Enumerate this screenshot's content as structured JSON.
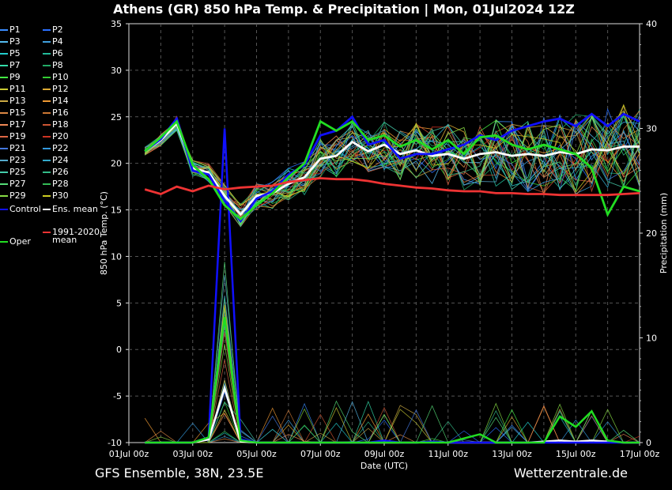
{
  "title": "Athens  (GR)  850 hPa Temp. & Precipitation | Mon, 01Jul2024 12Z",
  "footer_left": "GFS Ensemble, 38N, 23.5E",
  "footer_right": "Wetterzentrale.de",
  "colors": {
    "control": "#1010ff",
    "ens_mean": "#ffffff",
    "clim": "#ee3333",
    "oper": "#22dd22",
    "grid": "#555555"
  },
  "legend": {
    "members": [
      "P1",
      "P2",
      "P3",
      "P4",
      "P5",
      "P6",
      "P7",
      "P8",
      "P9",
      "P10",
      "P11",
      "P12",
      "P13",
      "P14",
      "P15",
      "P16",
      "P17",
      "P18",
      "P19",
      "P20",
      "P21",
      "P22",
      "P23",
      "P24",
      "P25",
      "P26",
      "P27",
      "P28",
      "P29",
      "P30"
    ],
    "member_colors": [
      "#3a8cff",
      "#2a70ff",
      "#55bbee",
      "#40a0dd",
      "#22cccc",
      "#22bb99",
      "#33ddaa",
      "#22aa66",
      "#44ee44",
      "#33cc33",
      "#cccc33",
      "#ddaa33",
      "#ccaa44",
      "#ee9933",
      "#dd8844",
      "#cc7733",
      "#ee8855",
      "#cc5533",
      "#dd6644",
      "#cc3322",
      "#4477dd",
      "#3399dd",
      "#55aacc",
      "#33aacc",
      "#44ccaa",
      "#33bb88",
      "#55dd77",
      "#33bb55",
      "#88dd44",
      "#cccc22"
    ],
    "control": "Control",
    "ens_mean": "Ens. mean",
    "clim": "1991-2020 mean",
    "clim_line1": "1991-2020",
    "clim_line2": "mean",
    "oper": "Oper"
  },
  "chart_data": {
    "type": "line",
    "title": "Athens  (GR)  850 hPa Temp. & Precipitation | Mon, 01Jul2024 12Z",
    "xlabel": "Date (UTC)",
    "ylabel": "850 hPa Temp. (°C)",
    "y2label": "Precipitation (mm)",
    "xlim": [
      "01Jul 00z",
      "17Jul 00z"
    ],
    "ylim": [
      -10,
      35
    ],
    "y2lim": [
      0,
      40
    ],
    "x_ticks": [
      "01Jul 00z",
      "03Jul 00z",
      "05Jul 00z",
      "07Jul 00z",
      "09Jul 00z",
      "11Jul 00z",
      "13Jul 00z",
      "15Jul 00z",
      "17Jul 00z"
    ],
    "y_ticks": [
      -10,
      -5,
      0,
      5,
      10,
      15,
      20,
      25,
      30,
      35
    ],
    "y2_ticks": [
      0,
      10,
      20,
      30,
      40
    ],
    "grid": true,
    "legend_position": "left outside",
    "x_days": [
      0.5,
      1.0,
      1.5,
      2.0,
      2.5,
      3.0,
      3.5,
      4.0,
      4.5,
      5.0,
      5.5,
      6.0,
      6.5,
      7.0,
      7.5,
      8.0,
      8.5,
      9.0,
      9.5,
      10.0,
      10.5,
      11.0,
      11.5,
      12.0,
      12.5,
      13.0,
      13.5,
      14.0,
      14.5,
      15.0,
      15.5,
      16.0
    ],
    "series": [
      {
        "name": "Ens. mean",
        "values": [
          21.3,
          22.5,
          24.3,
          19.5,
          19.0,
          16.5,
          14.5,
          16.5,
          16.8,
          17.8,
          18.5,
          20.5,
          20.8,
          22.3,
          21.3,
          22.0,
          21.0,
          21.4,
          20.8,
          21.0,
          20.5,
          21.0,
          21.2,
          20.8,
          21.0,
          20.8,
          21.2,
          21.0,
          21.5,
          21.4,
          21.8,
          21.8
        ]
      },
      {
        "name": "Control",
        "values": [
          21.3,
          22.6,
          24.8,
          19.2,
          18.8,
          16.0,
          13.8,
          16.2,
          17.0,
          18.8,
          19.8,
          23.0,
          23.5,
          25.0,
          22.0,
          22.5,
          20.5,
          21.0,
          21.0,
          21.5,
          22.0,
          23.0,
          22.5,
          23.5,
          24.0,
          24.5,
          24.8,
          24.0,
          25.3,
          24.0,
          25.3,
          24.5
        ]
      },
      {
        "name": "Oper",
        "values": [
          21.3,
          22.8,
          24.5,
          19.8,
          18.3,
          15.5,
          14.0,
          15.5,
          16.8,
          18.5,
          20.0,
          24.5,
          23.5,
          24.5,
          22.5,
          23.0,
          21.8,
          22.5,
          21.5,
          22.5,
          21.0,
          22.8,
          23.0,
          22.0,
          21.5,
          22.0,
          21.5,
          21.0,
          19.5,
          14.5,
          17.5,
          17.0
        ]
      },
      {
        "name": "1991-2020 mean",
        "values": [
          17.2,
          16.7,
          17.5,
          17.0,
          17.6,
          17.2,
          17.4,
          17.5,
          17.6,
          18.0,
          18.2,
          18.4,
          18.3,
          18.3,
          18.1,
          17.8,
          17.6,
          17.4,
          17.3,
          17.1,
          17.0,
          17.0,
          16.8,
          16.8,
          16.7,
          16.7,
          16.6,
          16.6,
          16.6,
          16.6,
          16.7,
          16.8
        ]
      }
    ],
    "precip_series": [
      {
        "name": "Ens. mean",
        "values": [
          0,
          0,
          0,
          0,
          0.3,
          5.2,
          0.1,
          0,
          0,
          0,
          0,
          0,
          0,
          0,
          0,
          0,
          0,
          0,
          0.1,
          0,
          0,
          0,
          0,
          0,
          0,
          0.1,
          0.2,
          0.1,
          0.2,
          0.1,
          0,
          0
        ]
      },
      {
        "name": "Control",
        "values": [
          0,
          0,
          0,
          0,
          0.5,
          30.0,
          0.3,
          0,
          0,
          0,
          0,
          0,
          0,
          0,
          0,
          0.2,
          0,
          0,
          0.1,
          0,
          0,
          0,
          0,
          0,
          0,
          0,
          0,
          0,
          0,
          0,
          0,
          0
        ]
      },
      {
        "name": "Oper",
        "values": [
          0,
          0,
          0,
          0,
          0.5,
          12.0,
          0.2,
          0,
          0,
          0,
          0,
          0,
          0,
          0,
          0,
          0,
          0,
          0,
          0,
          0,
          0.4,
          0.8,
          0,
          0,
          0,
          0,
          2.5,
          1.5,
          3.0,
          0.2,
          0,
          0
        ]
      }
    ]
  }
}
